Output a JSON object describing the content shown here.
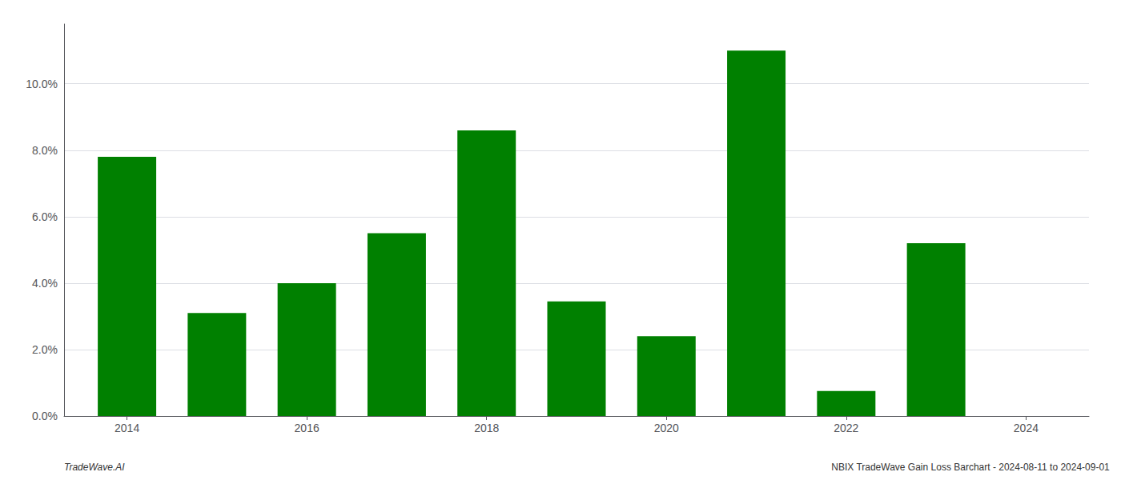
{
  "chart_data": {
    "type": "bar",
    "x": [
      2014,
      2015,
      2016,
      2017,
      2018,
      2019,
      2020,
      2021,
      2022,
      2023
    ],
    "values": [
      0.078,
      0.031,
      0.04,
      0.055,
      0.086,
      0.0345,
      0.024,
      0.11,
      0.0075,
      0.052
    ],
    "color": "#008000",
    "xlim": [
      2013.3,
      2024.7
    ],
    "xticks": [
      2014,
      2016,
      2018,
      2020,
      2022,
      2024
    ],
    "ylim": [
      0,
      0.118
    ],
    "yticks": [
      {
        "value": 0.0,
        "label": "0.0%"
      },
      {
        "value": 0.02,
        "label": "2.0%"
      },
      {
        "value": 0.04,
        "label": "4.0%"
      },
      {
        "value": 0.06,
        "label": "6.0%"
      },
      {
        "value": 0.08,
        "label": "8.0%"
      },
      {
        "value": 0.1,
        "label": "10.0%"
      }
    ],
    "grid": true,
    "annotations": [
      "TradeWave.AI",
      "NBIX TradeWave Gain Loss Barchart - 2024-08-11 to 2024-09-01"
    ]
  }
}
